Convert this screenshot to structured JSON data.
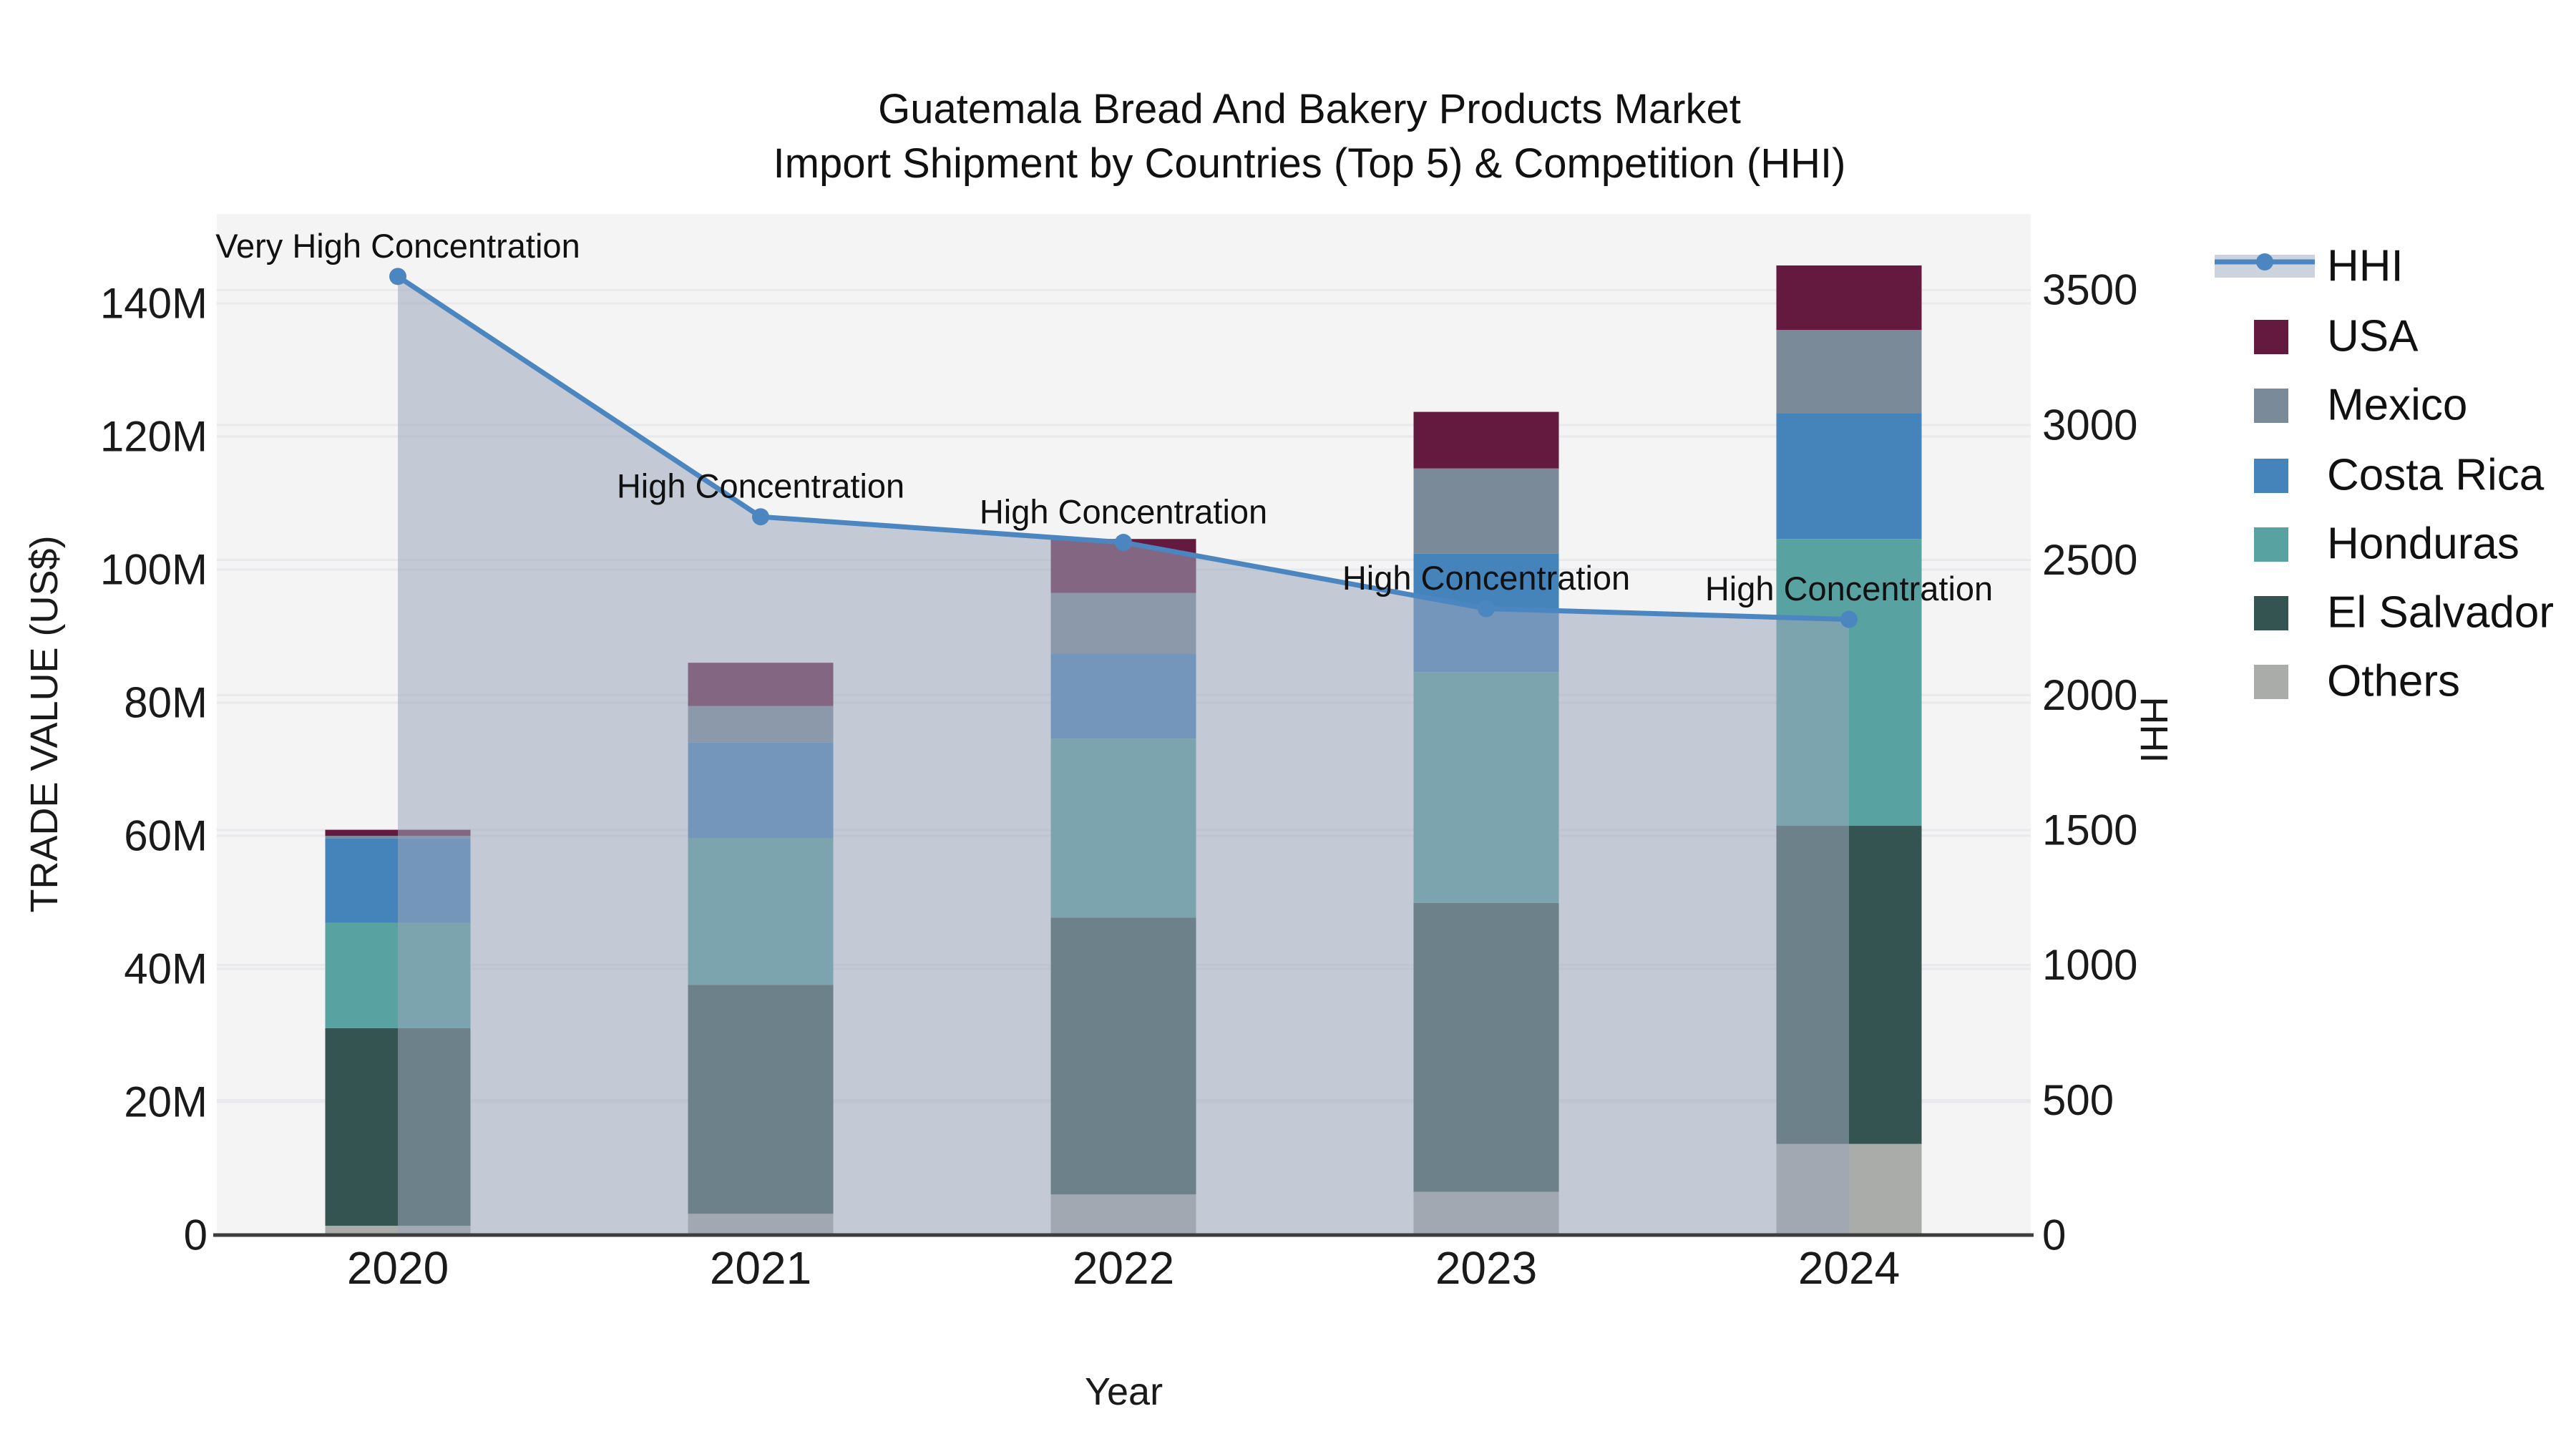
{
  "title": {
    "line1": "Guatemala Bread And Bakery Products Market",
    "line2": "Import Shipment by Countries (Top 5) & Competition (HHI)"
  },
  "chart_data": {
    "type": "bar",
    "subtype": "stacked-bar-with-line",
    "categories": [
      "2020",
      "2021",
      "2022",
      "2023",
      "2024"
    ],
    "xlabel": "Year",
    "ylabel_left": "TRADE VALUE (US$)",
    "ylabel_right": "HHI",
    "value_unit": "millions US$",
    "series": [
      {
        "name": "USA",
        "color": "#641a3e",
        "values": [
          0.9,
          6.5,
          8.1,
          8.5,
          9.7
        ]
      },
      {
        "name": "Mexico",
        "color": "#7b8a99",
        "values": [
          0.4,
          5.5,
          9.1,
          12.8,
          12.5
        ]
      },
      {
        "name": "Costa Rica",
        "color": "#4584bb",
        "values": [
          12.7,
          14.4,
          12.8,
          17.8,
          18.9
        ]
      },
      {
        "name": "Honduras",
        "color": "#58a2a2",
        "values": [
          15.8,
          22.0,
          26.9,
          34.7,
          43.1
        ]
      },
      {
        "name": "El Salvador",
        "color": "#335451",
        "values": [
          29.7,
          34.4,
          41.6,
          43.4,
          47.8
        ]
      },
      {
        "name": "Others",
        "color": "#aaaca9",
        "values": [
          1.4,
          3.2,
          6.1,
          6.5,
          13.7
        ]
      }
    ],
    "stack_order_bottom_to_top": [
      "Others",
      "El Salvador",
      "Honduras",
      "Costa Rica",
      "Mexico",
      "USA"
    ],
    "totals_millions": [
      60.9,
      86.0,
      104.6,
      123.7,
      145.7
    ],
    "line_series": {
      "name": "HHI",
      "axis": "right",
      "color": "#4c86c0",
      "values": [
        3550,
        2660,
        2565,
        2320,
        2280
      ],
      "area_fill": true
    },
    "annotations": [
      {
        "text": "Very High Concentration",
        "category": "2020",
        "hhi": 3550
      },
      {
        "text": "High Concentration",
        "category": "2021",
        "hhi": 2660
      },
      {
        "text": "High Concentration",
        "category": "2022",
        "hhi": 2565
      },
      {
        "text": "High Concentration",
        "category": "2023",
        "hhi": 2320
      },
      {
        "text": "High Concentration",
        "category": "2024",
        "hhi": 2280
      }
    ],
    "yaxis_left": {
      "tick_labels": [
        "0",
        "20M",
        "40M",
        "60M",
        "80M",
        "100M",
        "120M",
        "140M"
      ],
      "tick_values_millions": [
        0,
        20,
        40,
        60,
        80,
        100,
        120,
        140
      ],
      "range_millions": [
        0,
        153.4
      ]
    },
    "yaxis_right": {
      "tick_labels": [
        "0",
        "500",
        "1000",
        "1500",
        "2000",
        "2500",
        "3000",
        "3500"
      ],
      "tick_values": [
        0,
        500,
        1000,
        1500,
        2000,
        2500,
        3000,
        3500
      ],
      "range": [
        0,
        3781
      ]
    },
    "grid": true,
    "legend_position": "right"
  },
  "legend": {
    "items": [
      {
        "label": "HHI",
        "type": "line",
        "color": "#4c86c0",
        "band_color": "#cdd3dc"
      },
      {
        "label": "USA",
        "type": "square",
        "color": "#641a3e"
      },
      {
        "label": "Mexico",
        "type": "square",
        "color": "#7b8a99"
      },
      {
        "label": "Costa Rica",
        "type": "square",
        "color": "#4584bb"
      },
      {
        "label": "Honduras",
        "type": "square",
        "color": "#58a2a2"
      },
      {
        "label": "El Salvador",
        "type": "square",
        "color": "#335451"
      },
      {
        "label": "Others",
        "type": "square",
        "color": "#aaaca9"
      }
    ]
  },
  "colors": {
    "page_background": "#ffffff",
    "plot_background": "#f4f4f5",
    "gridline": "#e8e9ec",
    "axis_line": "#3d3d3d",
    "area_fill": "#9aa5ba",
    "area_fill_opacity": "0.55",
    "title_text": "#111111",
    "tick_text": "#1a1a1a",
    "annotation_text": "#111111"
  }
}
